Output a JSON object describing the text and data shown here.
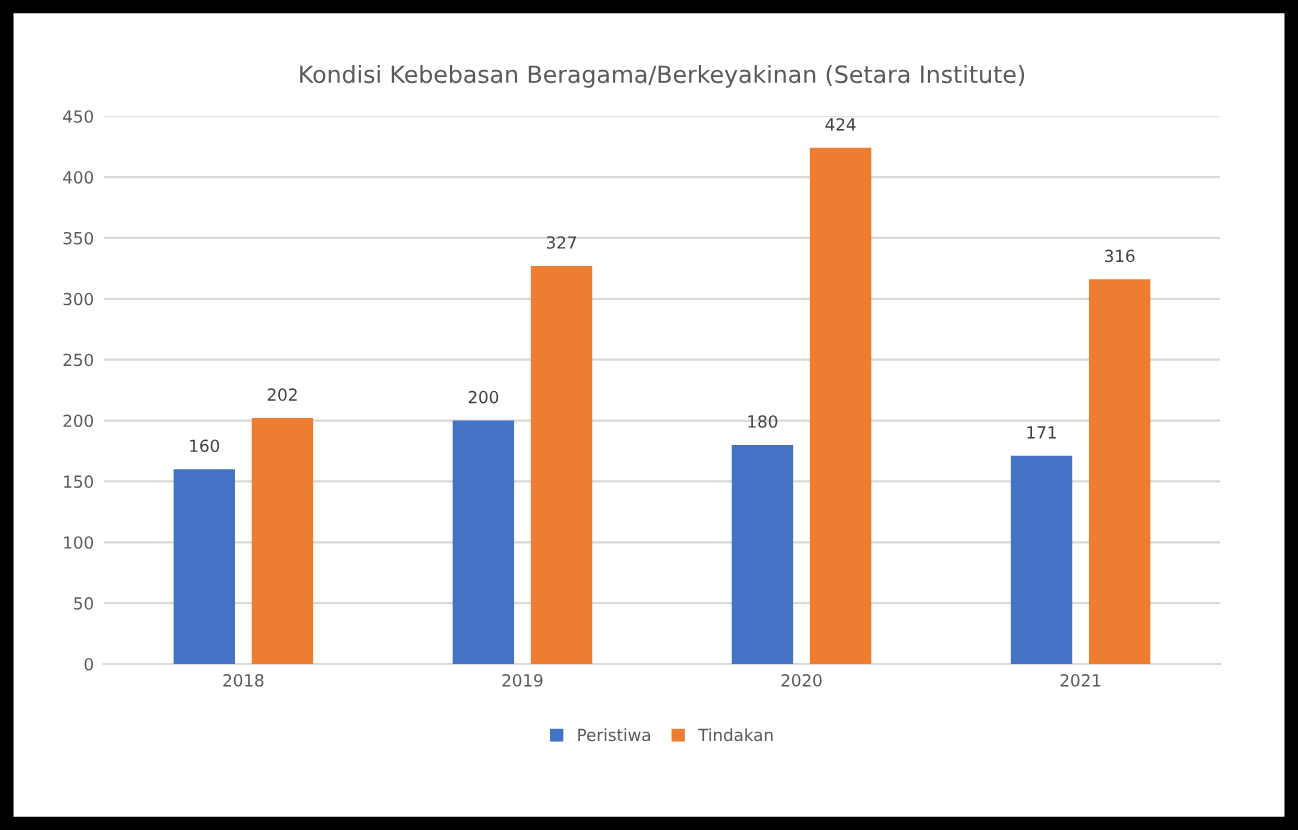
{
  "chart_data": {
    "type": "bar",
    "title": "Kondisi Kebebasan Beragama/Berkeyakinan (Setara Institute)",
    "categories": [
      "2018",
      "2019",
      "2020",
      "2021"
    ],
    "series": [
      {
        "name": "Peristiwa",
        "color": "#4472c4",
        "values": [
          160,
          200,
          180,
          171
        ]
      },
      {
        "name": "Tindakan",
        "color": "#ed7d31",
        "values": [
          202,
          327,
          424,
          316
        ]
      }
    ],
    "ylim": [
      0,
      450
    ],
    "yticks": [
      0,
      50,
      100,
      150,
      200,
      250,
      300,
      350,
      400,
      450
    ],
    "grid": "y",
    "legend": "bottom",
    "data_labels": true
  }
}
